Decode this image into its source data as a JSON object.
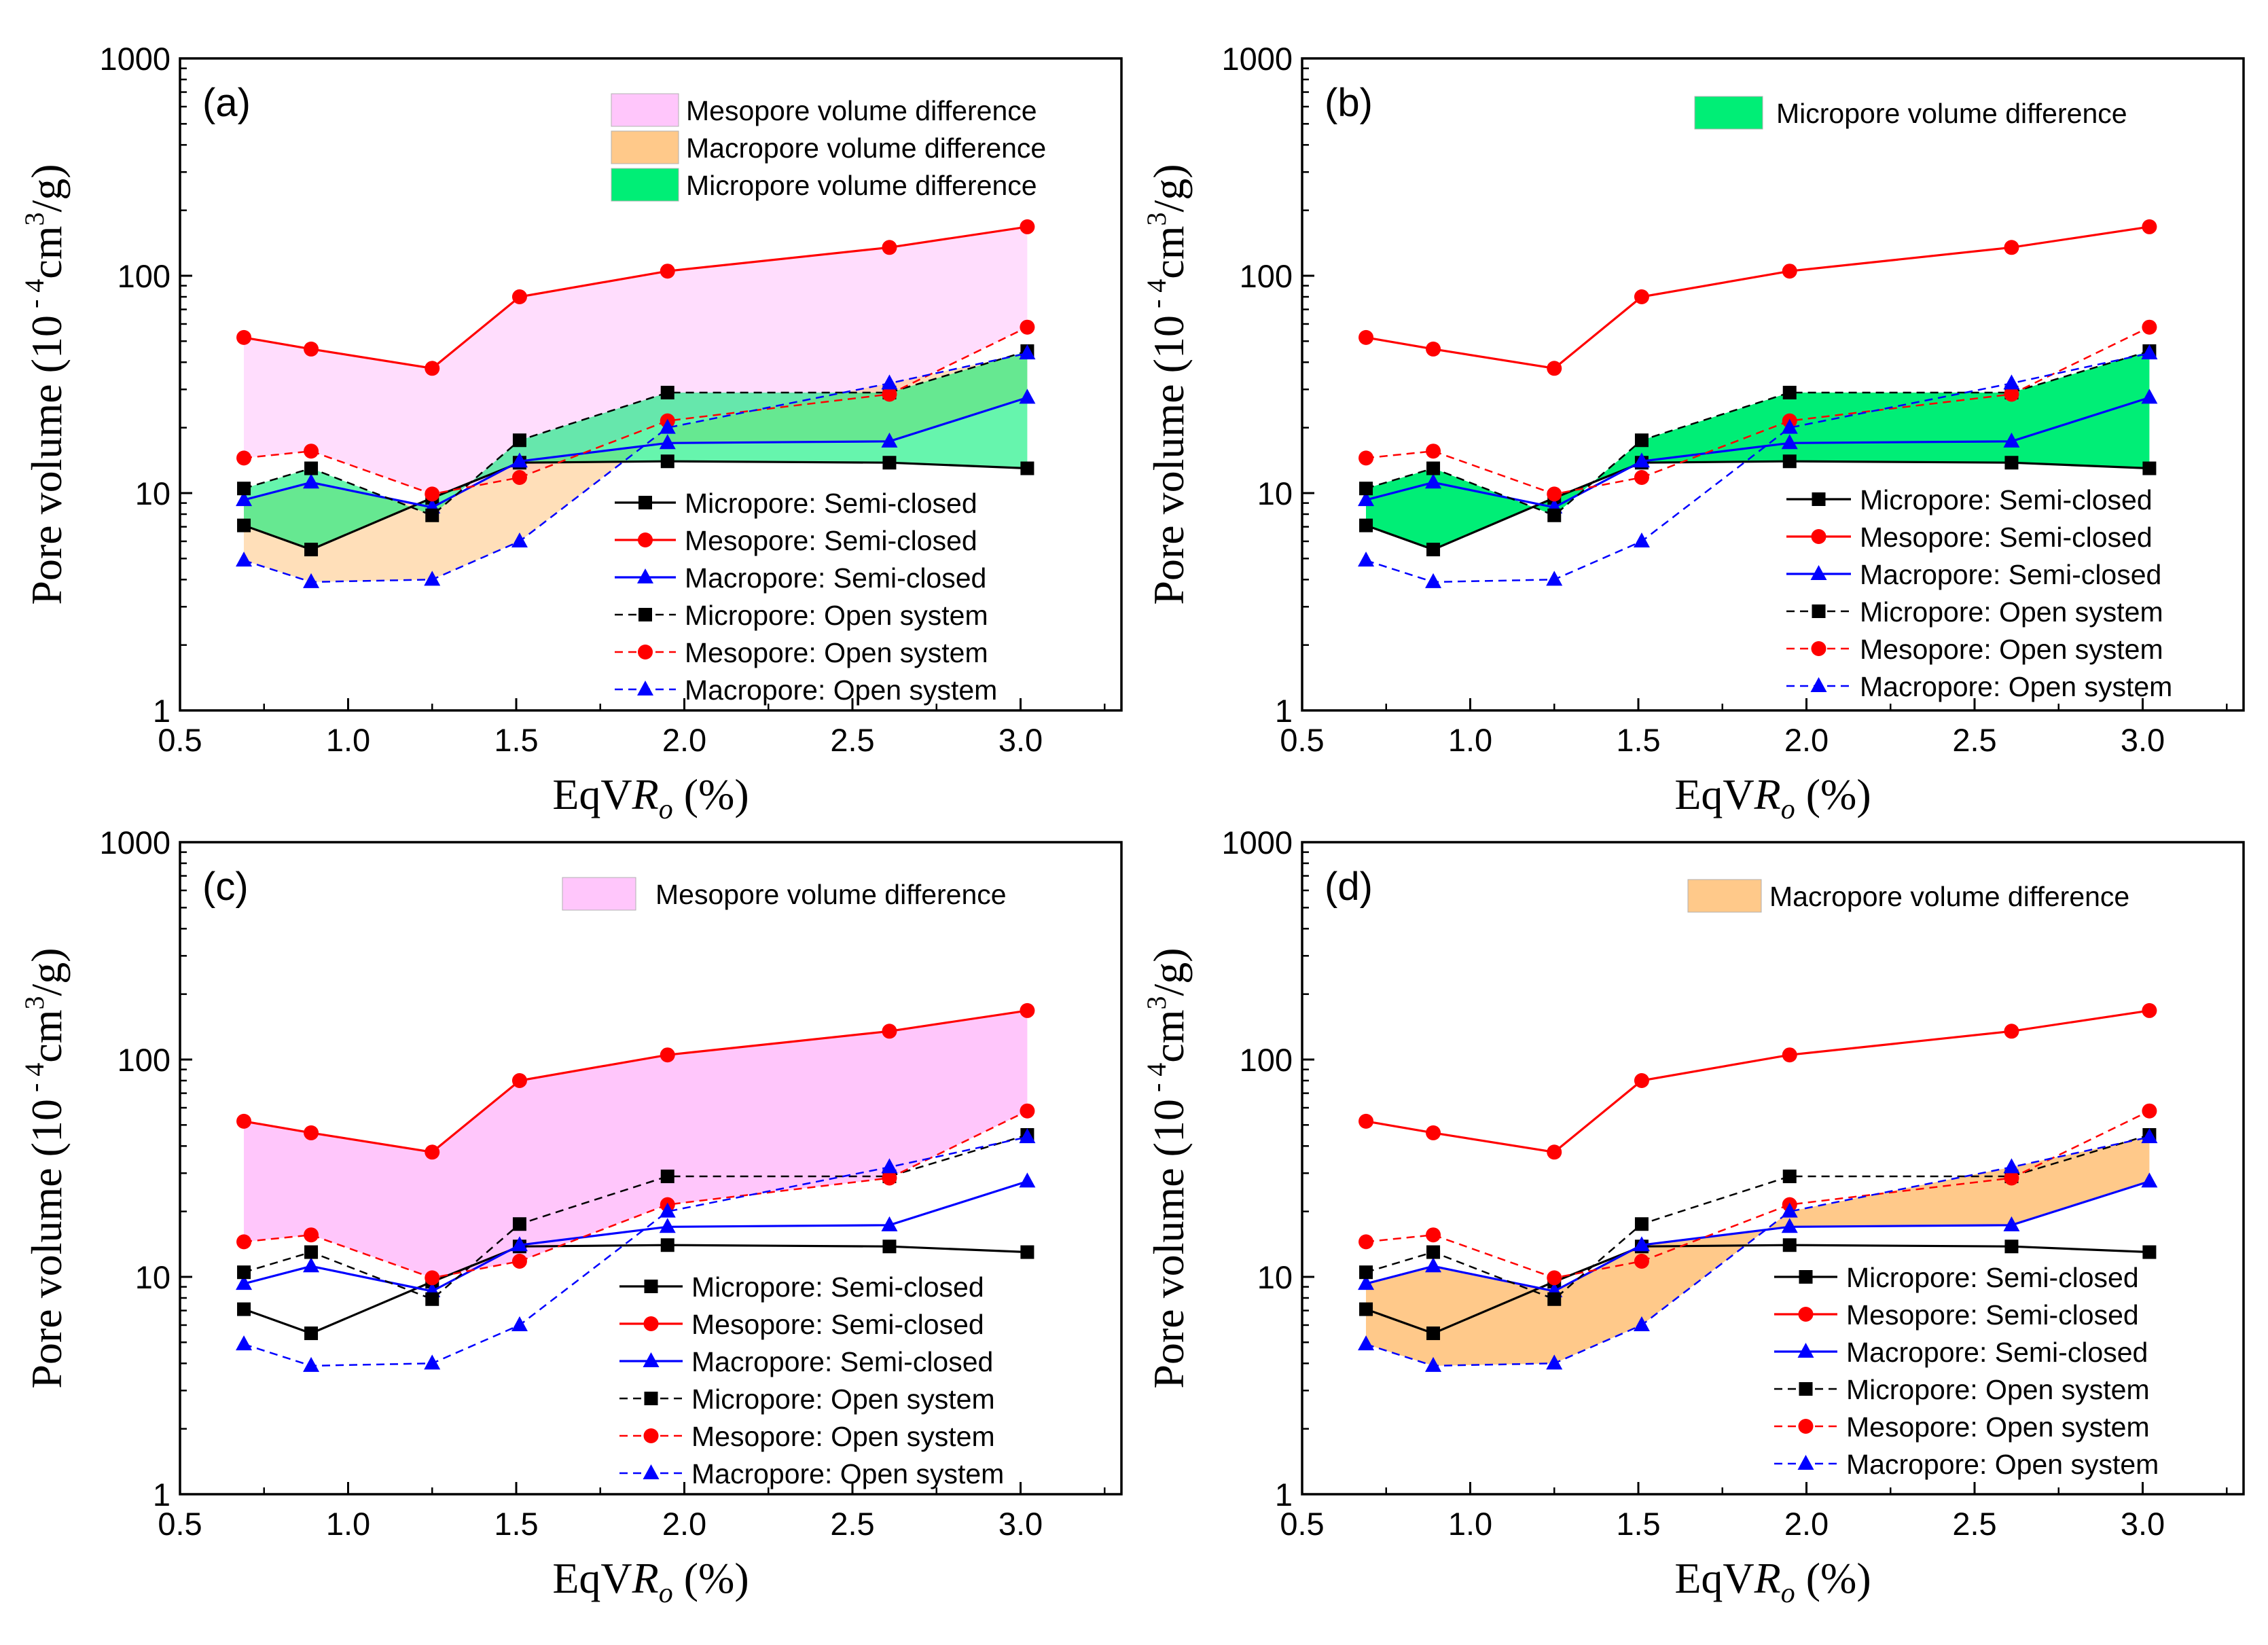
{
  "chart_data": {
    "type": "line",
    "x": [
      0.69,
      0.89,
      1.25,
      1.51,
      1.95,
      2.61,
      3.02
    ],
    "xlim": [
      0.5,
      3.3
    ],
    "ylim": [
      1,
      1000
    ],
    "yscale": "log",
    "xticks": [
      "0.5",
      "1.0",
      "1.5",
      "2.0",
      "2.5",
      "3.0"
    ],
    "yticks": [
      "1",
      "10",
      "100",
      "1000"
    ],
    "xlabel_main": "EqV",
    "xlabel_italic": "R",
    "xlabel_sub": "o",
    "xlabel_tail": " (%)",
    "ylabel_main": "Pore volume (10",
    "ylabel_sup1": " - 4",
    "ylabel_mid": "cm",
    "ylabel_sup2": "3",
    "ylabel_tail": "/g)",
    "series": [
      {
        "name": "Micropore: Semi-closed",
        "color": "#000000",
        "dash": false,
        "marker": "square",
        "values": [
          7.1,
          5.5,
          9.5,
          13.8,
          14.0,
          13.8,
          13.0
        ]
      },
      {
        "name": "Mesopore: Semi-closed",
        "color": "#ff0000",
        "dash": false,
        "marker": "circle",
        "values": [
          52,
          46,
          37.5,
          80,
          105,
          135,
          168
        ]
      },
      {
        "name": "Macropore: Semi-closed",
        "color": "#0000ff",
        "dash": false,
        "marker": "triangle",
        "values": [
          9.3,
          11.2,
          8.6,
          14.0,
          17.0,
          17.3,
          27.5
        ]
      },
      {
        "name": "Micropore: Open system",
        "color": "#000000",
        "dash": true,
        "marker": "square",
        "values": [
          10.5,
          13.0,
          7.9,
          17.5,
          29.0,
          29.0,
          45.0
        ]
      },
      {
        "name": "Mesopore: Open system",
        "color": "#ff0000",
        "dash": true,
        "marker": "circle",
        "values": [
          14.5,
          15.6,
          9.9,
          11.8,
          21.5,
          28.5,
          58.0
        ]
      },
      {
        "name": "Macropore: Open system",
        "color": "#0000ff",
        "dash": true,
        "marker": "triangle",
        "values": [
          4.9,
          3.9,
          4.0,
          6.0,
          20.0,
          32.0,
          44.0
        ]
      }
    ],
    "fills": {
      "micro": {
        "label": "Micropore volume difference",
        "color": "#00ee76",
        "a": 0,
        "b": 3
      },
      "meso": {
        "label": "Mesopore volume difference",
        "color": "#ffc6fb",
        "a": 1,
        "b": 4
      },
      "macro": {
        "label": "Macropore volume difference",
        "color": "#ffc98a",
        "a": 2,
        "b": 5
      }
    },
    "panels": [
      {
        "id": "a",
        "label": "(a)",
        "fills": [
          "meso",
          "macro",
          "micro"
        ]
      },
      {
        "id": "b",
        "label": "(b)",
        "fills": [
          "micro"
        ]
      },
      {
        "id": "c",
        "label": "(c)",
        "fills": [
          "meso"
        ]
      },
      {
        "id": "d",
        "label": "(d)",
        "fills": [
          "macro"
        ]
      }
    ]
  }
}
